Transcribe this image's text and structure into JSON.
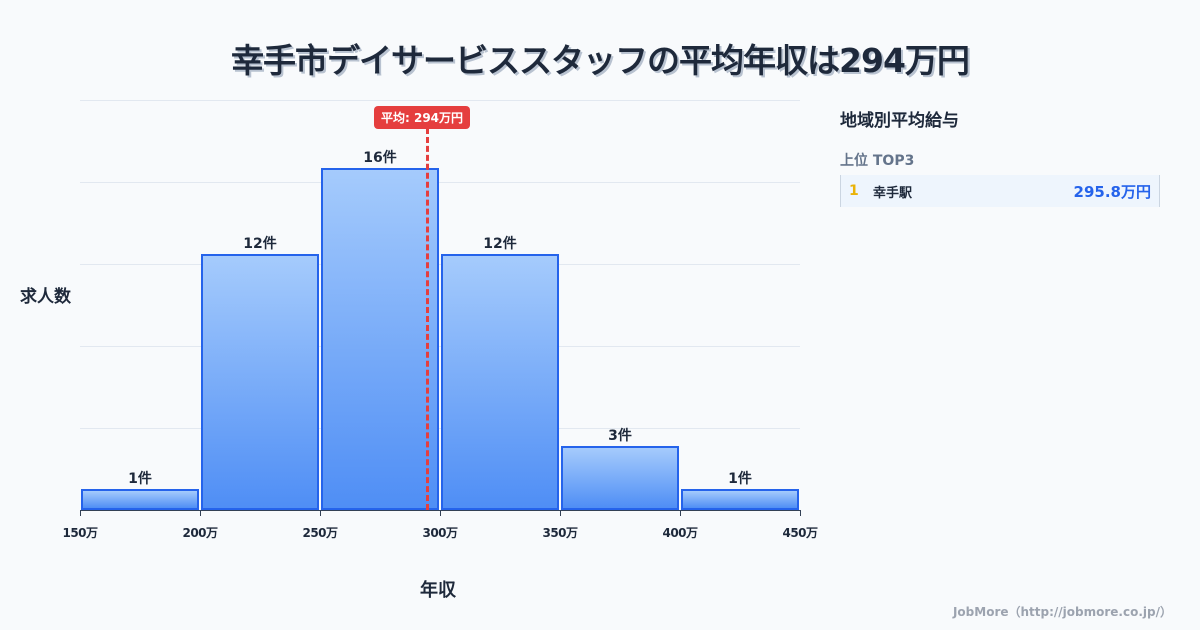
{
  "title": "幸手市デイサービススタッフの平均年収は294万円",
  "chart_data": {
    "type": "bar",
    "title": "幸手市デイサービススタッフの平均年収は294万円",
    "xlabel": "年収",
    "ylabel": "求人数",
    "categories": [
      "150-200万",
      "200-250万",
      "250-300万",
      "300-350万",
      "350-400万",
      "400-450万"
    ],
    "bin_edges": [
      150,
      200,
      250,
      300,
      350,
      400,
      450
    ],
    "values": [
      1,
      12,
      16,
      12,
      3,
      1
    ],
    "value_labels": [
      "1件",
      "12件",
      "16件",
      "12件",
      "3件",
      "1件"
    ],
    "x_tick_labels": [
      "150万",
      "200万",
      "250万",
      "300万",
      "350万",
      "400万",
      "450万"
    ],
    "ylim": [
      0,
      19.2
    ],
    "grid": true,
    "mean": 294,
    "mean_label": "平均: 294万円"
  },
  "axis": {
    "ylabel": "求人数",
    "xlabel": "年収"
  },
  "sidebar": {
    "title": "地域別平均給与",
    "subtitle": "上位 TOP3",
    "ranks": [
      {
        "rank": "1",
        "name": "幸手駅",
        "value": "295.8万円"
      }
    ]
  },
  "footer": "JobMore（http://jobmore.co.jp/）",
  "colors": {
    "bar": "#4f8ef5",
    "bar_border": "#2563eb",
    "mean": "#e53e3e",
    "rank_gold": "#eab308",
    "value_blue": "#2563eb"
  }
}
